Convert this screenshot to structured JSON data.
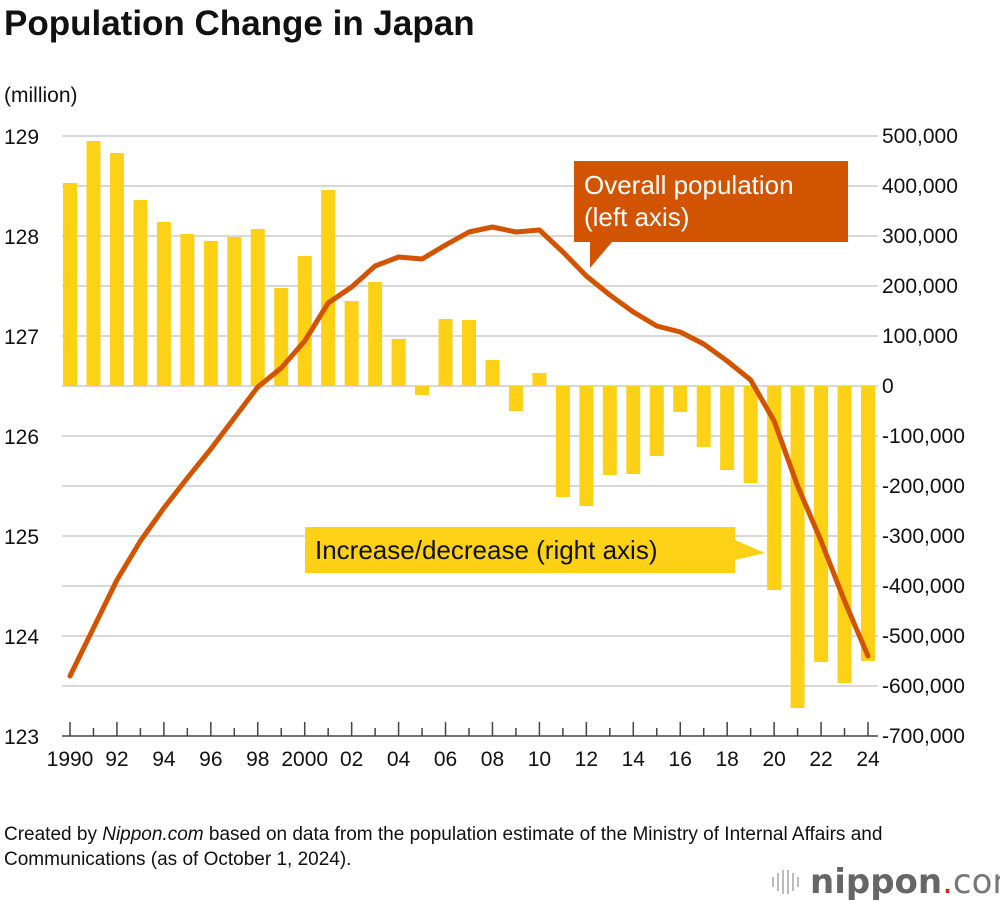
{
  "chart_data": {
    "type": "bar+line",
    "title": "Population Change in Japan",
    "left_axis": {
      "unit": "(million)",
      "ylim": [
        123,
        129
      ],
      "ticks": [
        123,
        124,
        125,
        126,
        127,
        128,
        129
      ]
    },
    "right_axis": {
      "ylim": [
        -700000,
        500000
      ],
      "ticks": [
        "500,000",
        "400,000",
        "300,000",
        "200,000",
        "100,000",
        "0",
        "-100,000",
        "-200,000",
        "-300,000",
        "-400,000",
        "-500,000",
        "-600,000",
        "-700,000"
      ]
    },
    "x": [
      1990,
      1991,
      1992,
      1993,
      1994,
      1995,
      1996,
      1997,
      1998,
      1999,
      2000,
      2001,
      2002,
      2003,
      2004,
      2005,
      2006,
      2007,
      2008,
      2009,
      2010,
      2011,
      2012,
      2013,
      2014,
      2015,
      2016,
      2017,
      2018,
      2019,
      2020,
      2021,
      2022,
      2023,
      2024
    ],
    "x_tick_labels": [
      "1990",
      "92",
      "94",
      "96",
      "98",
      "2000",
      "02",
      "04",
      "06",
      "08",
      "10",
      "12",
      "14",
      "16",
      "18",
      "20",
      "22",
      "24"
    ],
    "series": [
      {
        "name": "Increase/decrease (right axis)",
        "type": "bar",
        "color": "#fcd116",
        "values": [
          406000,
          490000,
          466000,
          372000,
          328000,
          304000,
          290000,
          298000,
          314000,
          196000,
          260000,
          392000,
          170000,
          208000,
          94000,
          -18000,
          134000,
          132000,
          52000,
          -50000,
          26000,
          -222000,
          -240000,
          -178000,
          -176000,
          -140000,
          -52000,
          -122000,
          -168000,
          -194000,
          -408000,
          -644000,
          -552000,
          -594000,
          -550000
        ]
      },
      {
        "name": "Overall population (left axis)",
        "type": "line",
        "color": "#d35400",
        "values": [
          123.6,
          124.08,
          124.56,
          124.95,
          125.28,
          125.58,
          125.87,
          126.18,
          126.49,
          126.68,
          126.95,
          127.33,
          127.49,
          127.7,
          127.79,
          127.77,
          127.91,
          128.04,
          128.09,
          128.04,
          128.06,
          127.84,
          127.6,
          127.41,
          127.24,
          127.1,
          127.04,
          126.92,
          126.75,
          126.56,
          126.15,
          125.5,
          124.95,
          124.35,
          123.8
        ]
      }
    ],
    "legend": {
      "line_label": "Overall population\n(left axis)",
      "line_label_1": "Overall population",
      "line_label_2": "(left axis)",
      "bar_label": "Increase/decrease (right axis)"
    },
    "grid": true
  },
  "footer": {
    "note_pre": "Created by ",
    "note_em": "Nippon.com",
    "note_post": " based on data from the population estimate of the Ministry of Internal Affairs and Communications (as of October 1, 2024).",
    "logo": "nippon.com"
  }
}
